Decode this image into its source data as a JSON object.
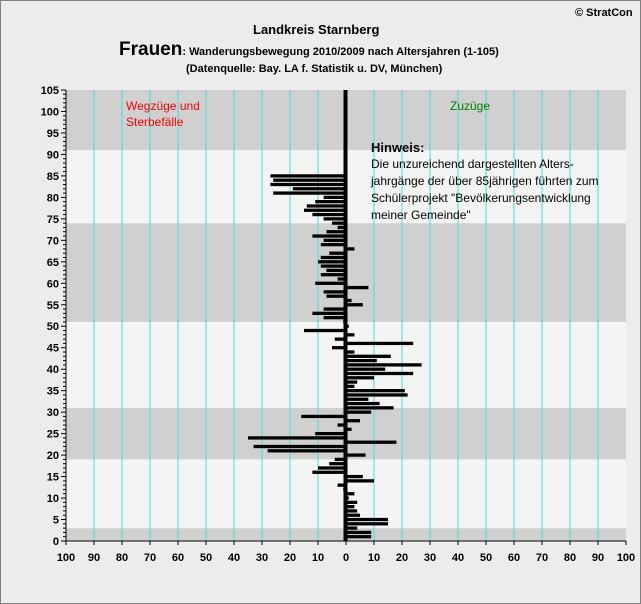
{
  "header": {
    "copyright": "© StratCon",
    "region": "Landkreis Starnberg",
    "gender": "Frauen",
    "subtitle": ": Wanderungsbewegung 2010/2009  nach Altersjahren (1-105)",
    "source": "(Datenquelle: Bay. LA f. Statistik u. DV, München)"
  },
  "labels": {
    "left_line1": "Wegzüge und",
    "left_line2": "Sterbefälle",
    "right": "Zuzüge",
    "hint_title": "Hinweis:",
    "hint_lines": [
      "Die unzureichend dargestellten Alters-",
      "jahrgänge der über 85jährigen führten zum",
      "Schülerprojekt \"Bevölkerungsentwicklung",
      "meiner Gemeinde\""
    ]
  },
  "colors": {
    "bar": "#000000",
    "gridline": "#40e0e0",
    "band_dark": "#d0d0d0",
    "band_light": "#f4f4f4",
    "left_label": "#ff0000",
    "right_label": "#008000"
  },
  "chart_data": {
    "type": "bar",
    "orientation": "horizontal",
    "title": "Frauen: Wanderungsbewegung 2010/2009  nach Altersjahren (1-105)",
    "xlim": [
      -100,
      100
    ],
    "ylim": [
      0,
      105
    ],
    "x_ticks": [
      100,
      90,
      80,
      70,
      60,
      50,
      40,
      30,
      20,
      10,
      0,
      10,
      20,
      30,
      40,
      50,
      60,
      70,
      80,
      90,
      100
    ],
    "y_ticks": [
      0,
      5,
      10,
      15,
      20,
      25,
      30,
      35,
      40,
      45,
      50,
      55,
      60,
      65,
      70,
      75,
      80,
      85,
      90,
      95,
      100,
      105
    ],
    "background_bands": [
      {
        "from": 0,
        "to": 3,
        "shade": "dark"
      },
      {
        "from": 3,
        "to": 19,
        "shade": "light"
      },
      {
        "from": 19,
        "to": 31,
        "shade": "dark"
      },
      {
        "from": 31,
        "to": 51,
        "shade": "light"
      },
      {
        "from": 51,
        "to": 74,
        "shade": "dark"
      },
      {
        "from": 74,
        "to": 91,
        "shade": "light"
      },
      {
        "from": 91,
        "to": 105,
        "shade": "dark"
      }
    ],
    "age": [
      1,
      2,
      3,
      4,
      5,
      6,
      7,
      8,
      9,
      10,
      11,
      12,
      13,
      14,
      15,
      16,
      17,
      18,
      19,
      20,
      21,
      22,
      23,
      24,
      25,
      26,
      27,
      28,
      29,
      30,
      31,
      32,
      33,
      34,
      35,
      36,
      37,
      38,
      39,
      40,
      41,
      42,
      43,
      44,
      45,
      46,
      47,
      48,
      49,
      50,
      51,
      52,
      53,
      54,
      55,
      56,
      57,
      58,
      59,
      60,
      61,
      62,
      63,
      64,
      65,
      66,
      67,
      68,
      69,
      70,
      71,
      72,
      73,
      74,
      75,
      76,
      77,
      78,
      79,
      80,
      81,
      82,
      83,
      84,
      85
    ],
    "net": [
      9,
      9,
      4,
      15,
      15,
      5,
      4,
      3,
      4,
      1,
      3,
      -1,
      -3,
      10,
      6,
      -12,
      -10,
      -6,
      -4,
      7,
      -28,
      -33,
      18,
      -35,
      -11,
      2,
      -3,
      5,
      -16,
      9,
      17,
      12,
      8,
      22,
      21,
      3,
      4,
      10,
      24,
      14,
      27,
      11,
      16,
      3,
      -5,
      24,
      -4,
      3,
      -15,
      1,
      -1,
      -8,
      -12,
      -8,
      6,
      2,
      -7,
      -8,
      8,
      -11,
      -3,
      -9,
      -7,
      -9,
      -10,
      -9,
      -6,
      3,
      -9,
      -8,
      -12,
      -7,
      -3,
      -5,
      -8,
      -12,
      -15,
      -14,
      -11,
      -8,
      -26,
      -19,
      -27,
      -26,
      -27
    ]
  }
}
